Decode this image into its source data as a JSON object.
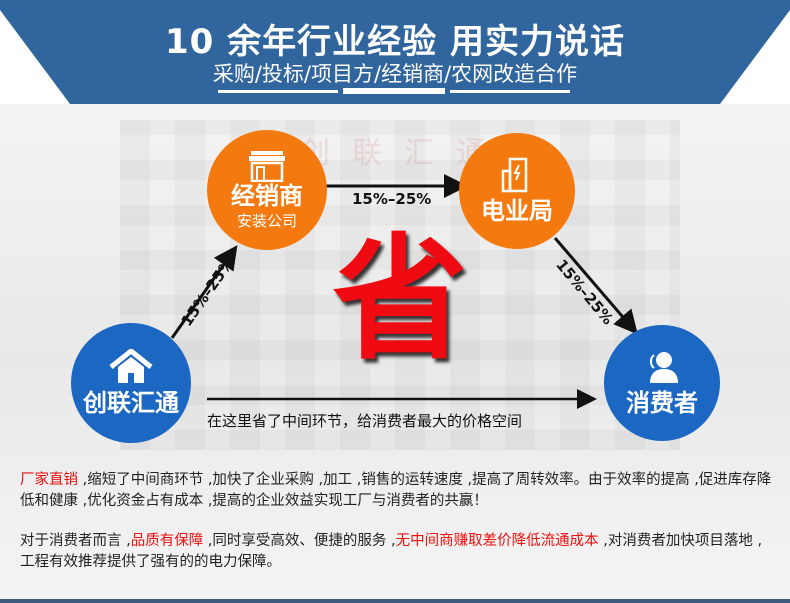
{
  "header": {
    "title": "10 余年行业经验 用实力说话",
    "subtitle": "采购/投标/项目方/经销商/农网改造合作"
  },
  "watermark": "创联汇通",
  "nodes": {
    "dealer": {
      "label": "经销商",
      "sublabel": "安装公司",
      "icon": "storefront-icon"
    },
    "power_bureau": {
      "label": "电业局",
      "icon": "power-building-icon"
    },
    "company": {
      "label": "创联汇通",
      "icon": "house-icon"
    },
    "consumer": {
      "label": "消费者",
      "icon": "user-icon"
    }
  },
  "edges": {
    "company_to_dealer": "15%–25%",
    "dealer_to_bureau": "15%–25%",
    "bureau_to_consumer": "15%–25%"
  },
  "center_char": "省",
  "direct_note": "在这里省了中间环节，给消费者最大的价格空间",
  "paragraph1": {
    "highlight": "厂家直销",
    "text": " ,缩短了中间商环节 ,加快了企业采购 ,加工 ,销售的运转速度 ,提高了周转效率。由于效率的提高 ,促进库存降低和健康 ,优化资金占有成本 ,提高的企业效益实现工厂与消费者的共赢！"
  },
  "paragraph2": {
    "text1": "对于消费者而言 ,",
    "highlight1": "品质有保障",
    "text2": " ,同时享受高效、便捷的服务 ,",
    "highlight2": "无中间商赚取差价降低流通成本",
    "text3": " ,对消费者加快项目落地 ,工程有效推荐提供了强有的的电力保障。"
  },
  "colors": {
    "banner": "#31659e",
    "orange": "#f47a10",
    "blue": "#1b67c2",
    "red": "#f00a12"
  }
}
